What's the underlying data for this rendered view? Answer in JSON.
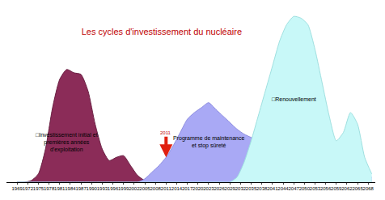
{
  "chart_data": {
    "type": "area",
    "title": "Les cycles d'investissement du nucléaire",
    "x": [
      1969,
      1971,
      1973,
      1975,
      1977,
      1979,
      1981,
      1983,
      1985,
      1987,
      1989,
      1991,
      1993,
      1995,
      1997,
      1999,
      2001,
      2003,
      2005,
      2007,
      2009,
      2011,
      2013,
      2015,
      2017,
      2019,
      2021,
      2023,
      2025,
      2027,
      2029,
      2031,
      2033,
      2035,
      2037,
      2039,
      2041,
      2043,
      2045,
      2047,
      2049,
      2051,
      2053,
      2055,
      2057,
      2059,
      2061,
      2063,
      2065,
      2067,
      2069
    ],
    "series": [
      {
        "name": "Investissement initial et premières années d'exploitation",
        "label_lines": [
          "□Investissement initial et",
          "premières années",
          "d'exploitation"
        ],
        "color": "#8b2c58",
        "values": [
          0,
          0,
          1,
          5,
          20,
          45,
          62,
          68,
          66,
          65,
          55,
          35,
          20,
          13,
          15,
          16,
          10,
          4,
          1,
          0,
          0,
          0,
          0,
          0,
          0,
          0,
          0,
          0,
          0,
          0,
          0,
          0,
          0,
          0,
          0,
          0,
          0,
          0,
          0,
          0,
          0,
          0,
          0,
          0,
          0,
          0,
          0,
          0,
          0,
          0,
          0
        ]
      },
      {
        "name": "Programme de maintenance et stop sûreté",
        "label_lines": [
          "Programme de maintenance",
          "et stop sûreté"
        ],
        "color": "#a9a9f5",
        "values": [
          0,
          0,
          0,
          0,
          0,
          0,
          0,
          0,
          0,
          0,
          0,
          0,
          0,
          0,
          0,
          0,
          0,
          0,
          2,
          6,
          10,
          15,
          22,
          30,
          38,
          42,
          45,
          48,
          44,
          40,
          36,
          32,
          29,
          27,
          26,
          25,
          24,
          24,
          23,
          22,
          20,
          12,
          5,
          3,
          3,
          3,
          3,
          3,
          3,
          3,
          3
        ]
      },
      {
        "name": "Renouvellement",
        "label_lines": [
          "□Renouvellement"
        ],
        "color": "#c8f8f8",
        "values": [
          0,
          0,
          0,
          0,
          0,
          0,
          0,
          0,
          0,
          0,
          0,
          0,
          0,
          0,
          0,
          0,
          0,
          0,
          0,
          0,
          0,
          0,
          0,
          0,
          0,
          0,
          0,
          0,
          0,
          0,
          0,
          3,
          12,
          25,
          40,
          55,
          70,
          85,
          95,
          100,
          99,
          95,
          80,
          60,
          40,
          25,
          30,
          42,
          35,
          15,
          5
        ]
      }
    ],
    "annotations": [
      {
        "text": "2011",
        "x": 2011
      }
    ],
    "xlim": [
      1966,
      2070
    ],
    "xticks": [
      1969,
      1972,
      1975,
      1978,
      1981,
      1984,
      1987,
      1990,
      1993,
      1996,
      1999,
      2002,
      2005,
      2008,
      2011,
      2014,
      2017,
      2020,
      2023,
      2026,
      2029,
      2032,
      2035,
      2038,
      2041,
      2044,
      2047,
      2050,
      2053,
      2056,
      2059,
      2062,
      2065,
      2068
    ],
    "ylim": [
      0,
      105
    ],
    "tick_labels": "x",
    "grid": false
  }
}
